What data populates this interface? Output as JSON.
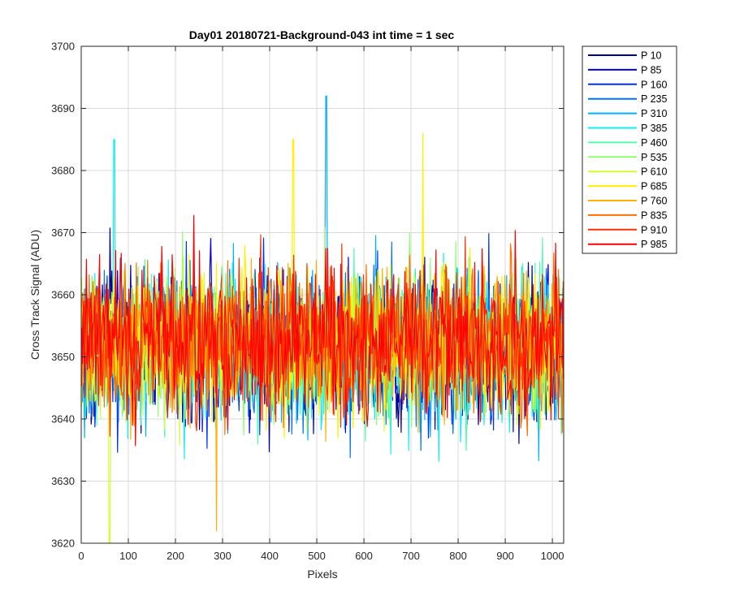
{
  "chart_data": {
    "type": "line",
    "title": "Day01 20180721-Background-043 int time = 1 sec",
    "xlabel": "Pixels",
    "ylabel": "Cross Track Signal (ADU)",
    "xlim": [
      0,
      1024
    ],
    "ylim": [
      3620,
      3700
    ],
    "xticks": [
      0,
      100,
      200,
      300,
      400,
      500,
      600,
      700,
      800,
      900,
      1000
    ],
    "yticks": [
      3620,
      3630,
      3640,
      3650,
      3660,
      3670,
      3680,
      3690,
      3700
    ],
    "grid": true,
    "legend_position": "outside-right-top",
    "noise_model": {
      "x_start": 1,
      "x_end": 1024,
      "mean": 3652,
      "typical_range": [
        3630,
        3675
      ]
    },
    "series": [
      {
        "name": "P 10",
        "color": "#00008F"
      },
      {
        "name": "P 85",
        "color": "#0000DF"
      },
      {
        "name": "P 160",
        "color": "#0030FF"
      },
      {
        "name": "P 235",
        "color": "#0070FF"
      },
      {
        "name": "P 310",
        "color": "#00B0FF"
      },
      {
        "name": "P 385",
        "color": "#10EFEF"
      },
      {
        "name": "P 460",
        "color": "#50FFAF"
      },
      {
        "name": "P 535",
        "color": "#90FF70"
      },
      {
        "name": "P 610",
        "color": "#CFFF30"
      },
      {
        "name": "P 685",
        "color": "#FFEF00"
      },
      {
        "name": "P 760",
        "color": "#FFB000"
      },
      {
        "name": "P 835",
        "color": "#FF7000"
      },
      {
        "name": "P 910",
        "color": "#FF3000"
      },
      {
        "name": "P 985",
        "color": "#FF0000"
      }
    ],
    "annotations": [
      {
        "series": "P 310",
        "x": 520,
        "y": 3692
      },
      {
        "series": "P 385",
        "x": 70,
        "y": 3685
      },
      {
        "series": "P 685",
        "x": 450,
        "y": 3685
      },
      {
        "series": "P 685",
        "x": 725,
        "y": 3686
      },
      {
        "series": "P 610",
        "x": 60,
        "y": 3620
      },
      {
        "series": "P 760",
        "x": 287,
        "y": 3622
      }
    ]
  }
}
